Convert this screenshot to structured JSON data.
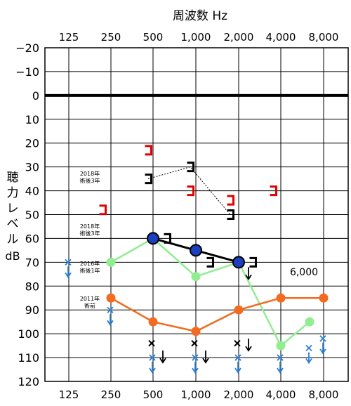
{
  "chart_data": {
    "type": "audiogram",
    "title": "周波数 Hz",
    "ylabel": "聴力レベル dB",
    "x_categories": [
      "125",
      "250",
      "500",
      "1,000",
      "2,000",
      "4,000",
      "8,000"
    ],
    "y_ticks": [
      "−20",
      "−10",
      "0",
      "10",
      "20",
      "30",
      "40",
      "50",
      "60",
      "70",
      "80",
      "90",
      "100",
      "110",
      "120"
    ],
    "ylim": [
      -20,
      120
    ],
    "y_inverted": true,
    "grid": true,
    "extra_label": "6,000",
    "series": [
      {
        "name": "2016年 術後1年",
        "color": "#90ee90",
        "marker": "filled-circle",
        "points": [
          {
            "x": "250",
            "y": 70
          },
          {
            "x": "500",
            "y": 60
          },
          {
            "x": "1,000",
            "y": 76
          },
          {
            "x": "2,000",
            "y": 70
          },
          {
            "x": "4,000",
            "y": 105
          },
          {
            "x": "6,000",
            "y": 95
          }
        ]
      },
      {
        "name": "2011年 術前",
        "color": "#f26b20",
        "marker": "filled-circle",
        "points": [
          {
            "x": "250",
            "y": 85
          },
          {
            "x": "500",
            "y": 95
          },
          {
            "x": "1,000",
            "y": 99
          },
          {
            "x": "2,000",
            "y": 90
          },
          {
            "x": "4,000",
            "y": 85
          },
          {
            "x": "8,000",
            "y": 85
          }
        ]
      },
      {
        "name": "",
        "color": "#000000",
        "marker": "blue-circle",
        "points": [
          {
            "x": "500",
            "y": 60
          },
          {
            "x": "1,000",
            "y": 65
          },
          {
            "x": "2,000",
            "y": 70
          }
        ]
      },
      {
        "name": "",
        "color": "#000000",
        "marker": "bracket",
        "points": [
          {
            "x": "500",
            "y": 60
          },
          {
            "x": "1,000",
            "y": 70
          },
          {
            "x": "2,000",
            "y": 70
          }
        ]
      },
      {
        "name": "2018年 術後3年",
        "color": "#000000",
        "marker": "bracket-dotted",
        "points": [
          {
            "x": "500",
            "y": 35
          },
          {
            "x": "1,000",
            "y": 30
          },
          {
            "x": "2,000",
            "y": 50
          }
        ]
      },
      {
        "name": "2018年 術後3年",
        "color": "#e00000",
        "marker": "bracket-red",
        "points": [
          {
            "x": "250",
            "y": 48
          },
          {
            "x": "500",
            "y": 23
          },
          {
            "x": "1,000",
            "y": 40
          },
          {
            "x": "2,000",
            "y": 44
          },
          {
            "x": "4,000",
            "y": 40
          }
        ]
      },
      {
        "name": "",
        "color": "#2a7fd8",
        "marker": "x-arrow",
        "points": [
          {
            "x": "125",
            "y": 70
          },
          {
            "x": "250",
            "y": 90
          },
          {
            "x": "500",
            "y": 110
          },
          {
            "x": "1,000",
            "y": 110
          },
          {
            "x": "2,000",
            "y": 110
          },
          {
            "x": "4,000",
            "y": 110
          },
          {
            "x": "6,000",
            "y": 106
          },
          {
            "x": "8,000",
            "y": 102
          }
        ]
      },
      {
        "name": "",
        "color": "#000000",
        "marker": "x",
        "points": [
          {
            "x": "500",
            "y": 104
          },
          {
            "x": "1,000",
            "y": 104
          },
          {
            "x": "2,000",
            "y": 104
          }
        ]
      },
      {
        "name": "",
        "color": "#000000",
        "marker": "down-arrow",
        "points": [
          {
            "x": "500",
            "y": 110
          },
          {
            "x": "1,000",
            "y": 110
          },
          {
            "x": "2,000",
            "y": 105
          },
          {
            "x": "2,000",
            "y": 75
          }
        ]
      }
    ]
  }
}
